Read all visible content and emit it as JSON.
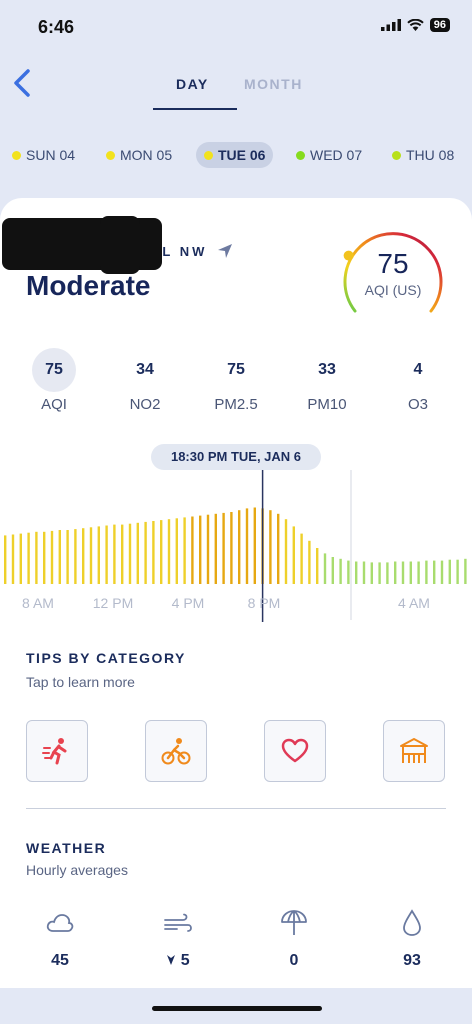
{
  "status": {
    "time": "6:46",
    "battery": "96"
  },
  "tabs": [
    {
      "label": "DAY"
    },
    {
      "label": "MONTH"
    }
  ],
  "days": [
    {
      "label": "SUN 04",
      "color": "#f2e21d"
    },
    {
      "label": "MON 05",
      "color": "#f2e21d"
    },
    {
      "label": "TUE 06",
      "color": "#f2e21d"
    },
    {
      "label": "WED 07",
      "color": "#86db1e"
    },
    {
      "label": "THU 08",
      "color": "#b8e01a"
    }
  ],
  "location": {
    "name": "RICHARDSON PL NW"
  },
  "aqi": {
    "category": "Moderate",
    "value": "75",
    "unit": "AQI (US)",
    "gauge_fraction": 0.25
  },
  "pollutants": [
    {
      "value": "75",
      "name": "AQI"
    },
    {
      "value": "34",
      "name": "NO2"
    },
    {
      "value": "75",
      "name": "PM2.5"
    },
    {
      "value": "33",
      "name": "PM10"
    },
    {
      "value": "4",
      "name": "O3"
    }
  ],
  "chart": {
    "selected_time": "18:30 PM TUE, JAN 6",
    "x_labels": [
      "8 AM",
      "12 PM",
      "4 PM",
      "8 PM",
      "4 AM"
    ]
  },
  "chart_data": {
    "type": "bar",
    "series": [
      {
        "values": [
          54,
          55,
          56,
          57,
          58,
          58,
          59,
          60,
          60,
          61,
          62,
          63,
          64,
          65,
          66,
          66,
          67,
          68,
          69,
          70,
          71,
          72,
          73,
          74,
          75,
          76,
          77,
          78,
          79,
          80,
          82,
          84,
          85,
          84,
          82,
          78,
          72,
          64,
          56,
          48,
          40,
          34,
          30,
          28,
          26,
          25,
          25,
          24,
          24,
          24,
          25,
          25,
          25,
          25,
          26,
          26,
          26,
          27,
          27,
          28
        ]
      }
    ],
    "selected_index": 33,
    "day_boundary_index": 45,
    "colors": {
      "high": "#e6a812",
      "mid": "#eed02a",
      "low": "#a8dc6e"
    }
  },
  "tips": {
    "title": "TIPS BY CATEGORY",
    "subtitle": "Tap to learn more",
    "items": [
      {
        "icon": "running-icon"
      },
      {
        "icon": "cycling-icon"
      },
      {
        "icon": "heart-icon"
      },
      {
        "icon": "playground-icon"
      }
    ]
  },
  "weather": {
    "title": "WEATHER",
    "subtitle": "Hourly averages",
    "items": [
      {
        "icon": "cloud-icon",
        "value": "45"
      },
      {
        "icon": "wind-icon",
        "value": "5"
      },
      {
        "icon": "umbrella-icon",
        "value": "0"
      },
      {
        "icon": "humidity-icon",
        "value": "93"
      }
    ]
  }
}
